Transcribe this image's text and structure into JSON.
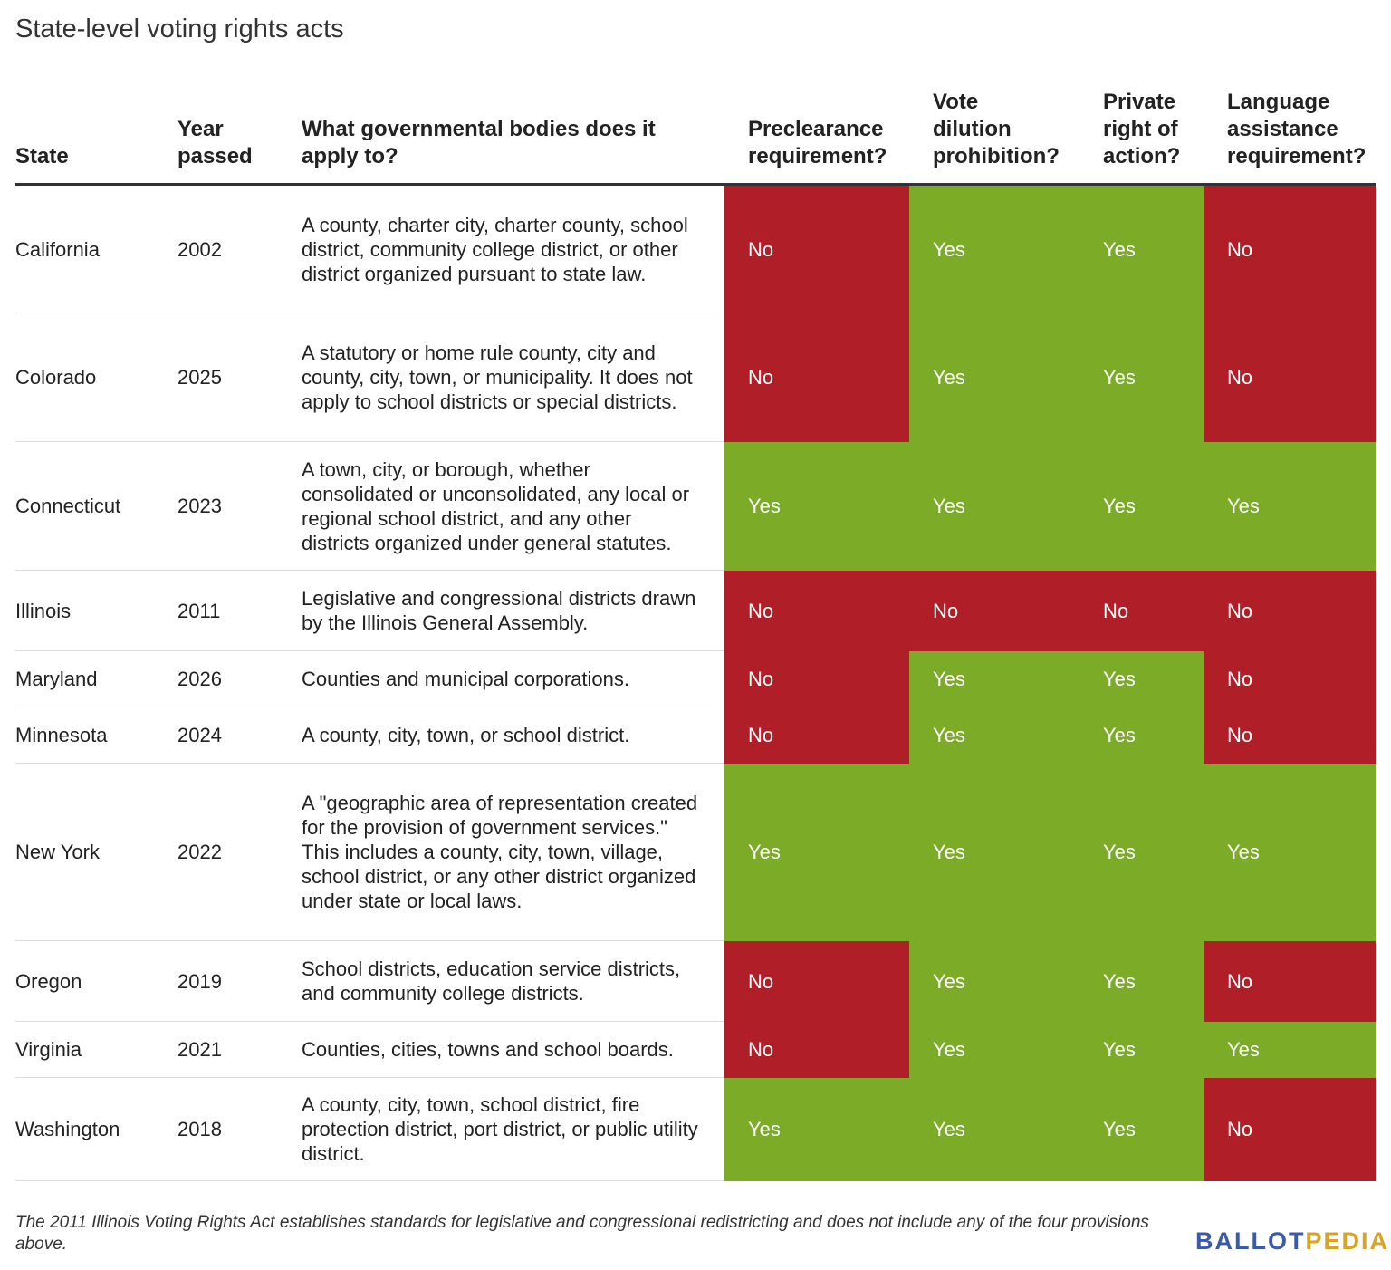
{
  "title": "State-level voting rights acts",
  "headers": {
    "state": "State",
    "year": "Year passed",
    "bodies": "What governmental bodies does it apply to?",
    "preclearance": "Preclearance requirement?",
    "dilution": "Vote dilution prohibition?",
    "private_action": "Private right of action?",
    "language": "Language assistance requirement?"
  },
  "rows": [
    {
      "state": "California",
      "year": "2002",
      "bodies": "A county, charter city, charter county, school district, community college district, or other district organized pursuant to state law.",
      "preclearance": "No",
      "dilution": "Yes",
      "private_action": "Yes",
      "language": "No"
    },
    {
      "state": "Colorado",
      "year": "2025",
      "bodies": "A statutory or home rule county, city and county, city, town, or municipality. It does not apply to school districts or special districts.",
      "preclearance": "No",
      "dilution": "Yes",
      "private_action": "Yes",
      "language": "No"
    },
    {
      "state": "Connecticut",
      "year": "2023",
      "bodies": "A town, city, or borough, whether consolidated or unconsolidated, any local or regional school district, and any other districts organized under general statutes.",
      "preclearance": "Yes",
      "dilution": "Yes",
      "private_action": "Yes",
      "language": "Yes"
    },
    {
      "state": "Illinois",
      "year": "2011",
      "bodies": "Legislative and congressional districts drawn by the Illinois General Assembly.",
      "preclearance": "No",
      "dilution": "No",
      "private_action": "No",
      "language": "No"
    },
    {
      "state": "Maryland",
      "year": "2026",
      "bodies": "Counties and municipal corporations.",
      "preclearance": "No",
      "dilution": "Yes",
      "private_action": "Yes",
      "language": "No"
    },
    {
      "state": "Minnesota",
      "year": "2024",
      "bodies": "A county, city, town, or school district.",
      "preclearance": "No",
      "dilution": "Yes",
      "private_action": "Yes",
      "language": "No"
    },
    {
      "state": "New York",
      "year": "2022",
      "bodies": "A \"geographic area of representation created for the provision of government services.\" This includes a county, city, town, village, school district, or any other district organized under state or local laws.",
      "preclearance": "Yes",
      "dilution": "Yes",
      "private_action": "Yes",
      "language": "Yes"
    },
    {
      "state": "Oregon",
      "year": "2019",
      "bodies": "School districts, education service districts, and community college districts.",
      "preclearance": "No",
      "dilution": "Yes",
      "private_action": "Yes",
      "language": "No"
    },
    {
      "state": "Virginia",
      "year": "2021",
      "bodies": "Counties, cities, towns and school boards.",
      "preclearance": "No",
      "dilution": "Yes",
      "private_action": "Yes",
      "language": "Yes"
    },
    {
      "state": "Washington",
      "year": "2018",
      "bodies": "A county, city, town, school district, fire protection district, port district, or public utility district.",
      "preclearance": "Yes",
      "dilution": "Yes",
      "private_action": "Yes",
      "language": "No"
    }
  ],
  "footnote": "The 2011 Illinois Voting Rights Act establishes standards for legislative and congressional redistricting and does not include any of the four provisions above.",
  "logo": {
    "part1": "BALLOT",
    "part2": "PEDIA"
  },
  "colors": {
    "yes": "#7bab27",
    "no": "#b01e28",
    "logo_blue": "#3b5ba8",
    "logo_gold": "#d9a521"
  }
}
